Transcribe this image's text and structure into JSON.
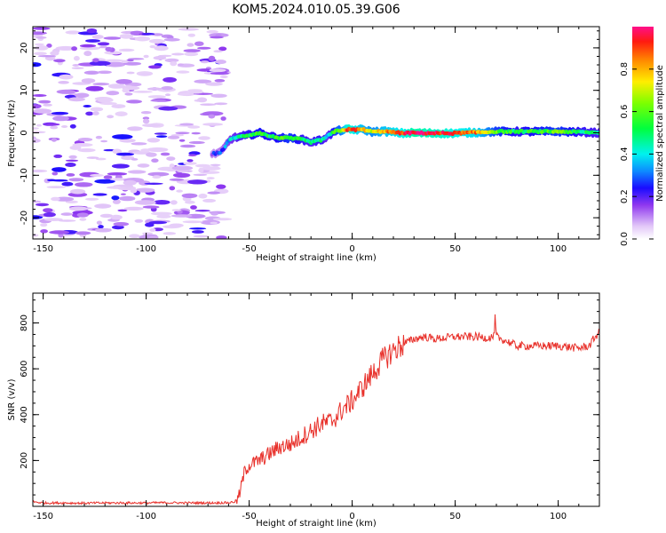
{
  "title": "KOM5.2024.010.05.39.G06",
  "chart_data": [
    {
      "type": "heatmap",
      "name": "spectrogram",
      "xlabel": "Height of straight line (km)",
      "ylabel": "Frequency (Hz)",
      "xlim": [
        -155,
        120
      ],
      "ylim": [
        -25,
        25
      ],
      "x_ticks": [
        -150,
        -100,
        -50,
        0,
        50,
        100
      ],
      "y_ticks": [
        -20,
        -10,
        0,
        10,
        20
      ],
      "colorbar": {
        "label": "Normalized spectral amplitude",
        "range": [
          0,
          1
        ],
        "ticks": [
          0.0,
          0.2,
          0.4,
          0.6,
          0.8
        ]
      },
      "noise_region_x": [
        -155,
        -62
      ],
      "ridge": {
        "x": [
          -68,
          -64,
          -62,
          -60,
          -58,
          -55,
          -50,
          -45,
          -40,
          -35,
          -30,
          -25,
          -20,
          -15,
          -12,
          -8,
          -5,
          -2,
          0,
          5,
          10,
          15,
          20,
          25,
          30,
          40,
          50,
          60,
          70,
          80,
          90,
          100,
          110,
          120
        ],
        "freq": [
          -5,
          -4.6,
          -3.5,
          -2,
          -1.2,
          -1,
          -0.5,
          0,
          -0.8,
          -1.2,
          -1.3,
          -1.5,
          -2.2,
          -1.7,
          -0.8,
          0.4,
          0.6,
          0.8,
          0.7,
          0.8,
          0.2,
          0.4,
          0.1,
          -0.1,
          0,
          -0.1,
          -0.1,
          0.1,
          0.3,
          0.3,
          0.3,
          0.3,
          0.2,
          0
        ],
        "amplitude": [
          0.2,
          0.25,
          0.3,
          0.35,
          0.4,
          0.45,
          0.5,
          0.55,
          0.5,
          0.55,
          0.6,
          0.5,
          0.45,
          0.5,
          0.4,
          0.6,
          0.7,
          0.95,
          0.9,
          0.8,
          0.7,
          0.8,
          0.85,
          0.9,
          1.0,
          0.95,
          0.9,
          0.85,
          0.6,
          0.5,
          0.55,
          0.6,
          0.5,
          0.45
        ]
      }
    },
    {
      "type": "line",
      "name": "snr",
      "xlabel": "Height of straight line (km)",
      "ylabel": "SNR (v/v)",
      "xlim": [
        -155,
        120
      ],
      "ylim": [
        0,
        930
      ],
      "x_ticks": [
        -150,
        -100,
        -50,
        0,
        50,
        100
      ],
      "y_ticks": [
        200,
        400,
        600,
        800
      ],
      "color": "#e8302a",
      "series": [
        {
          "x": [
            -155,
            -150,
            -140,
            -130,
            -120,
            -110,
            -100,
            -90,
            -80,
            -70,
            -60,
            -57,
            -55,
            -52,
            -50,
            -45,
            -40,
            -35,
            -30,
            -25,
            -20,
            -15,
            -10,
            -5,
            0,
            5,
            10,
            15,
            20,
            25,
            30,
            35,
            40,
            50,
            60,
            65,
            70,
            75,
            80,
            90,
            100,
            110,
            115,
            118,
            120
          ],
          "values": [
            20,
            15,
            15,
            14,
            15,
            15,
            15,
            16,
            15,
            15,
            16,
            20,
            40,
            160,
            180,
            200,
            230,
            260,
            270,
            300,
            330,
            360,
            370,
            420,
            460,
            520,
            580,
            640,
            680,
            710,
            730,
            740,
            730,
            740,
            740,
            735,
            740,
            720,
            700,
            700,
            700,
            690,
            700,
            740,
            760
          ]
        }
      ]
    }
  ]
}
